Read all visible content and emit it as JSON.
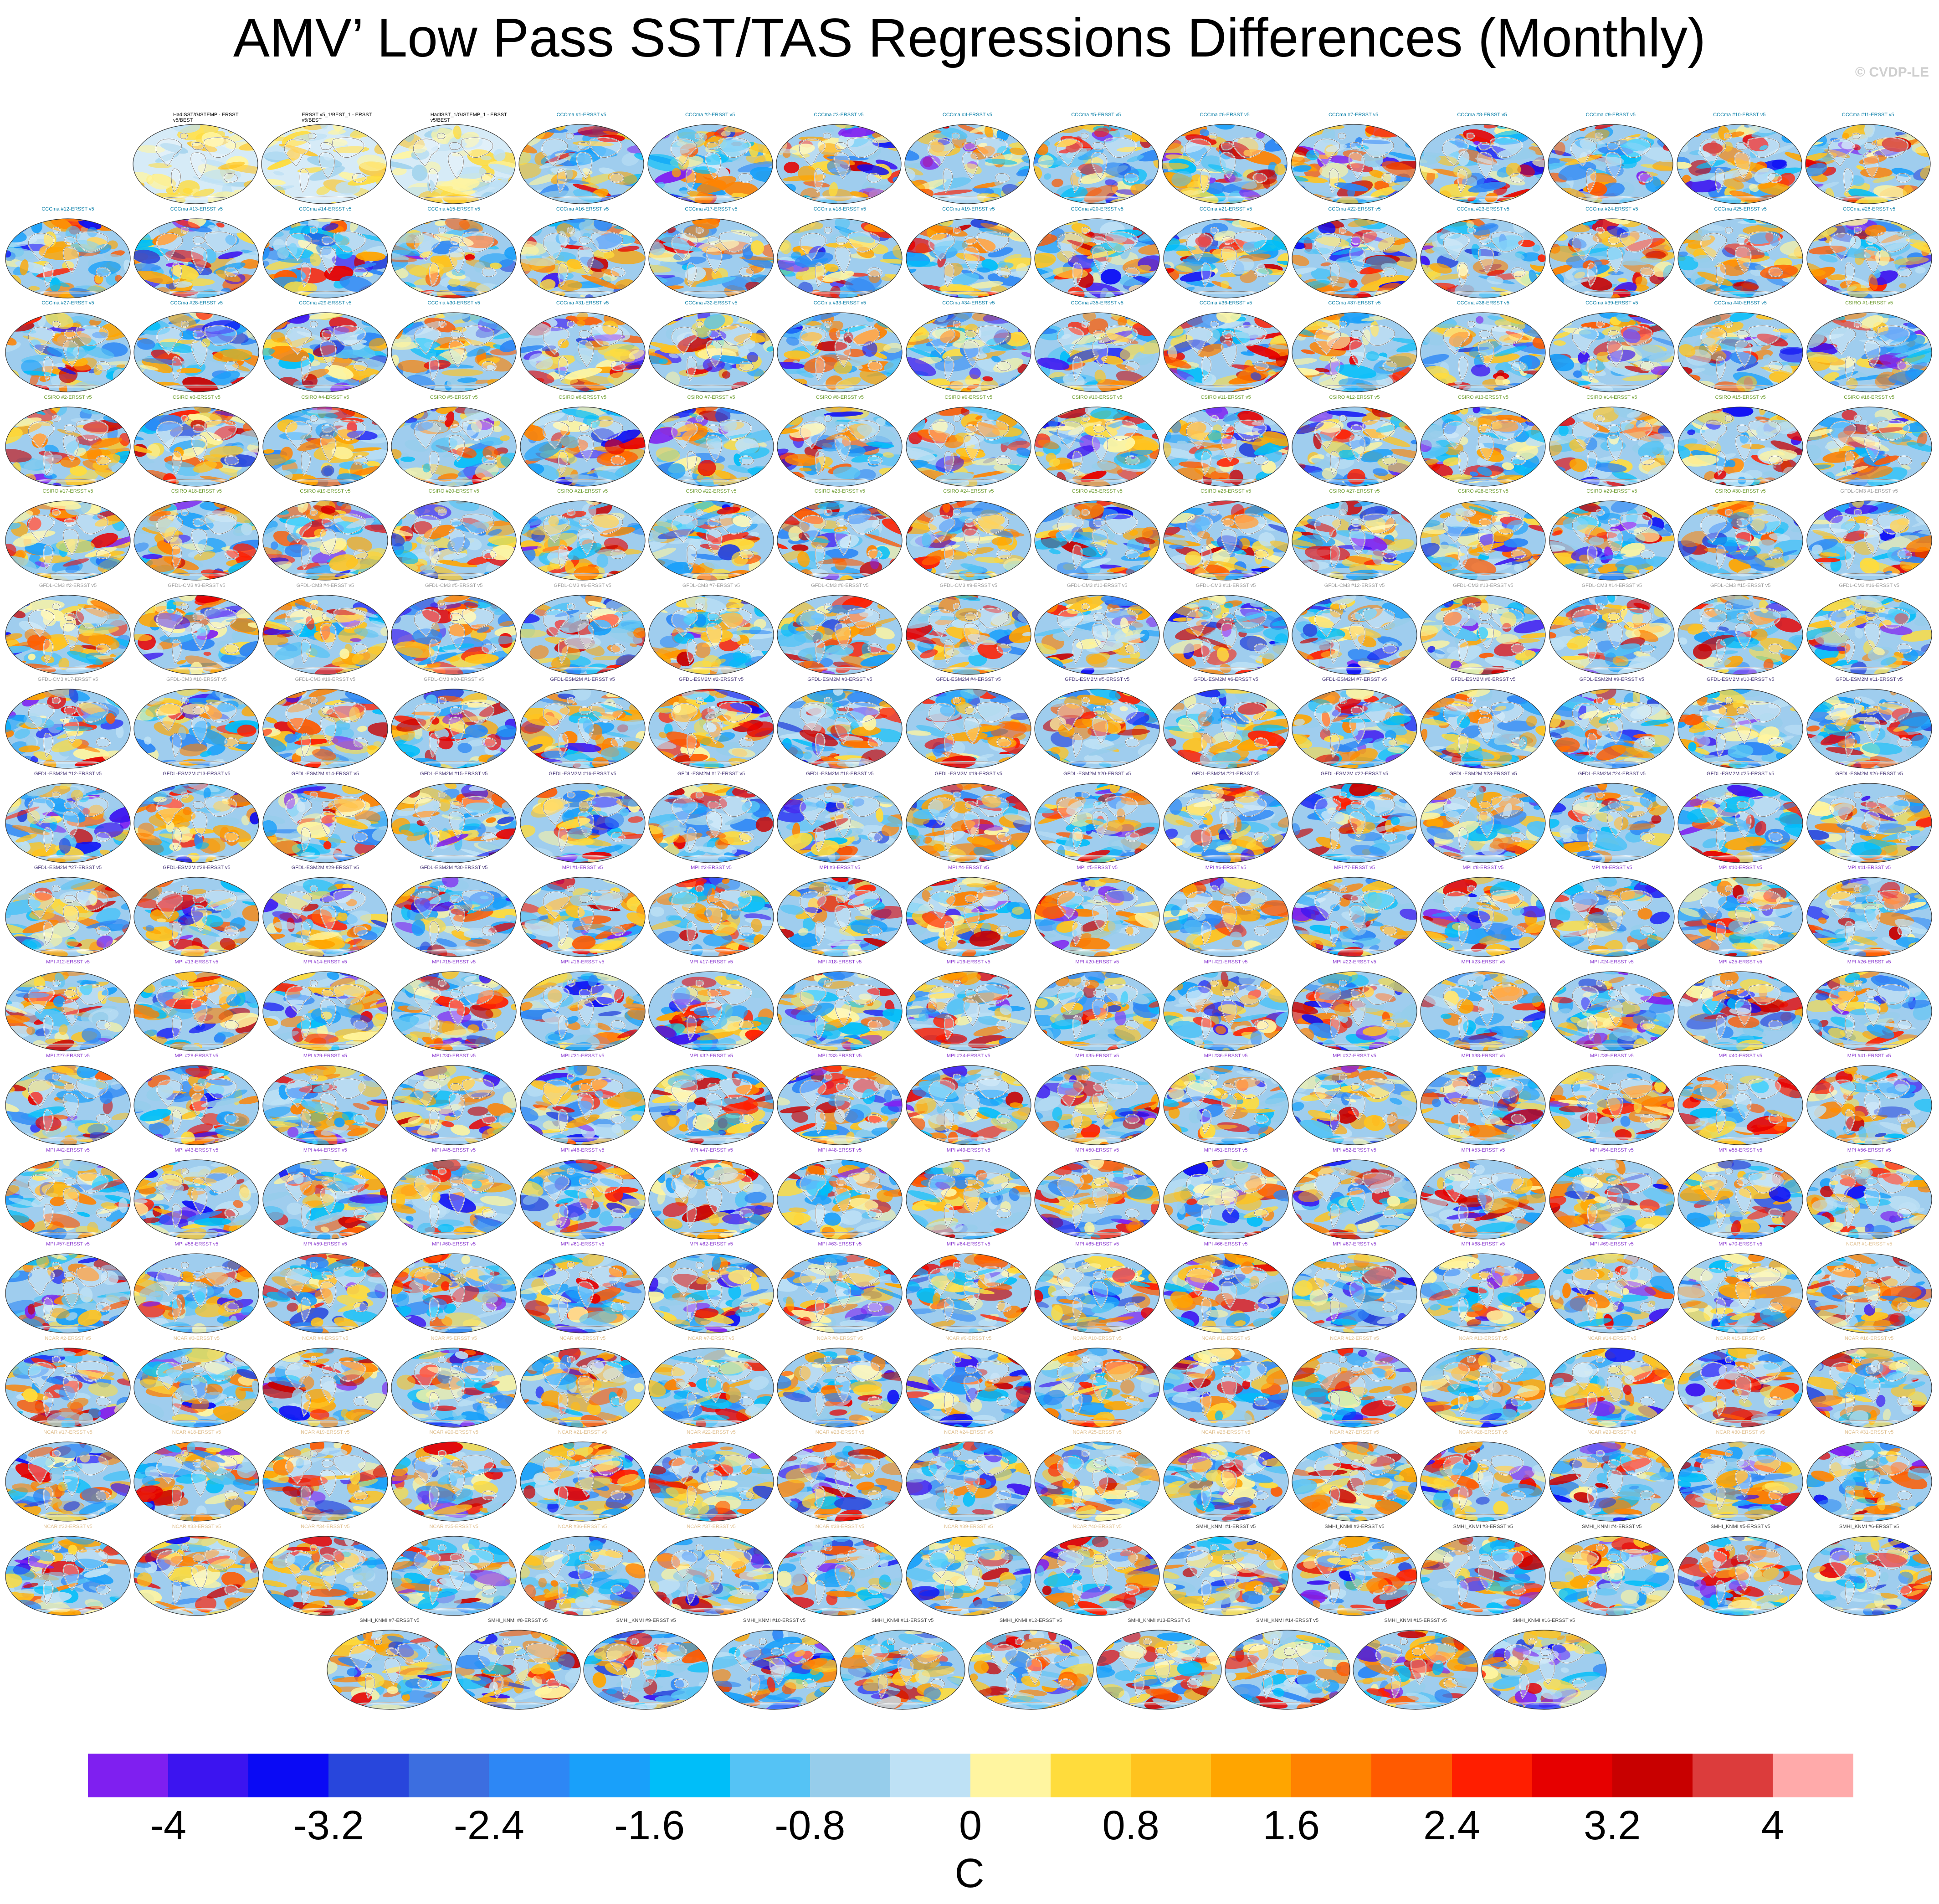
{
  "title": "AMV’ Low Pass SST/TAS Regressions Differences (Monthly)",
  "copyright": "© CVDP-LE",
  "units": "C",
  "chart_data": {
    "type": "heatmap",
    "description_kind": "grid of global map panels showing regression differences",
    "title": "AMV’ Low Pass SST/TAS Regressions Differences (Monthly)",
    "colorbar": {
      "label": "C",
      "tick_labels": [
        "-4",
        "-3.2",
        "-2.4",
        "-1.6",
        "-0.8",
        "0",
        "0.8",
        "1.6",
        "2.4",
        "3.2",
        "4"
      ],
      "tick_values": [
        -4,
        -3.2,
        -2.4,
        -1.6,
        -0.8,
        0,
        0.8,
        1.6,
        2.4,
        3.2,
        4
      ],
      "colors": [
        "#7f1ff0",
        "#3c14f0",
        "#0a0af5",
        "#2846dc",
        "#3c6ee0",
        "#2d87f5",
        "#19a0fa",
        "#00bef9",
        "#55c3f5",
        "#96cdeb",
        "#bee1f5",
        "#fff5a0",
        "#ffdc3c",
        "#ffc31e",
        "#ffa500",
        "#ff8200",
        "#ff5a00",
        "#ff1e00",
        "#e60000",
        "#c80000",
        "#dc3c3c",
        "#ffaaaa"
      ]
    },
    "panels": [
      [
        "HadISST/GISTEMP - ERSST v5/BEST",
        "ERSST v5_1/BEST_1 - ERSST v5/BEST",
        "HadISST_1/GISTEMP_1 - ERSST v5/BEST",
        "CCCma #1-ERSST v5",
        "CCCma #2-ERSST v5",
        "CCCma #3-ERSST v5",
        "CCCma #4-ERSST v5",
        "CCCma #5-ERSST v5",
        "CCCma #6-ERSST v5",
        "CCCma #7-ERSST v5",
        "CCCma #8-ERSST v5",
        "CCCma #9-ERSST v5",
        "CCCma #10-ERSST v5",
        "CCCma #11-ERSST v5"
      ],
      [
        "CCCma #12-ERSST v5",
        "CCCma #13-ERSST v5",
        "CCCma #14-ERSST v5",
        "CCCma #15-ERSST v5",
        "CCCma #16-ERSST v5",
        "CCCma #17-ERSST v5",
        "CCCma #18-ERSST v5",
        "CCCma #19-ERSST v5",
        "CCCma #20-ERSST v5",
        "CCCma #21-ERSST v5",
        "CCCma #22-ERSST v5",
        "CCCma #23-ERSST v5",
        "CCCma #24-ERSST v5",
        "CCCma #25-ERSST v5",
        "CCCma #26-ERSST v5"
      ],
      [
        "CCCma #27-ERSST v5",
        "CCCma #28-ERSST v5",
        "CCCma #29-ERSST v5",
        "CCCma #30-ERSST v5",
        "CCCma #31-ERSST v5",
        "CCCma #32-ERSST v5",
        "CCCma #33-ERSST v5",
        "CCCma #34-ERSST v5",
        "CCCma #35-ERSST v5",
        "CCCma #36-ERSST v5",
        "CCCma #37-ERSST v5",
        "CCCma #38-ERSST v5",
        "CCCma #39-ERSST v5",
        "CCCma #40-ERSST v5",
        "CSIRO #1-ERSST v5"
      ],
      [
        "CSIRO #2-ERSST v5",
        "CSIRO #3-ERSST v5",
        "CSIRO #4-ERSST v5",
        "CSIRO #5-ERSST v5",
        "CSIRO #6-ERSST v5",
        "CSIRO #7-ERSST v5",
        "CSIRO #8-ERSST v5",
        "CSIRO #9-ERSST v5",
        "CSIRO #10-ERSST v5",
        "CSIRO #11-ERSST v5",
        "CSIRO #12-ERSST v5",
        "CSIRO #13-ERSST v5",
        "CSIRO #14-ERSST v5",
        "CSIRO #15-ERSST v5",
        "CSIRO #16-ERSST v5"
      ],
      [
        "CSIRO #17-ERSST v5",
        "CSIRO #18-ERSST v5",
        "CSIRO #19-ERSST v5",
        "CSIRO #20-ERSST v5",
        "CSIRO #21-ERSST v5",
        "CSIRO #22-ERSST v5",
        "CSIRO #23-ERSST v5",
        "CSIRO #24-ERSST v5",
        "CSIRO #25-ERSST v5",
        "CSIRO #26-ERSST v5",
        "CSIRO #27-ERSST v5",
        "CSIRO #28-ERSST v5",
        "CSIRO #29-ERSST v5",
        "CSIRO #30-ERSST v5",
        "GFDL-CM3 #1-ERSST v5"
      ],
      [
        "GFDL-CM3 #2-ERSST v5",
        "GFDL-CM3 #3-ERSST v5",
        "GFDL-CM3 #4-ERSST v5",
        "GFDL-CM3 #5-ERSST v5",
        "GFDL-CM3 #6-ERSST v5",
        "GFDL-CM3 #7-ERSST v5",
        "GFDL-CM3 #8-ERSST v5",
        "GFDL-CM3 #9-ERSST v5",
        "GFDL-CM3 #10-ERSST v5",
        "GFDL-CM3 #11-ERSST v5",
        "GFDL-CM3 #12-ERSST v5",
        "GFDL-CM3 #13-ERSST v5",
        "GFDL-CM3 #14-ERSST v5",
        "GFDL-CM3 #15-ERSST v5",
        "GFDL-CM3 #16-ERSST v5"
      ],
      [
        "GFDL-CM3 #17-ERSST v5",
        "GFDL-CM3 #18-ERSST v5",
        "GFDL-CM3 #19-ERSST v5",
        "GFDL-CM3 #20-ERSST v5",
        "GFDL-ESM2M #1-ERSST v5",
        "GFDL-ESM2M #2-ERSST v5",
        "GFDL-ESM2M #3-ERSST v5",
        "GFDL-ESM2M #4-ERSST v5",
        "GFDL-ESM2M #5-ERSST v5",
        "GFDL-ESM2M #6-ERSST v5",
        "GFDL-ESM2M #7-ERSST v5",
        "GFDL-ESM2M #8-ERSST v5",
        "GFDL-ESM2M #9-ERSST v5",
        "GFDL-ESM2M #10-ERSST v5",
        "GFDL-ESM2M #11-ERSST v5"
      ],
      [
        "GFDL-ESM2M #12-ERSST v5",
        "GFDL-ESM2M #13-ERSST v5",
        "GFDL-ESM2M #14-ERSST v5",
        "GFDL-ESM2M #15-ERSST v5",
        "GFDL-ESM2M #16-ERSST v5",
        "GFDL-ESM2M #17-ERSST v5",
        "GFDL-ESM2M #18-ERSST v5",
        "GFDL-ESM2M #19-ERSST v5",
        "GFDL-ESM2M #20-ERSST v5",
        "GFDL-ESM2M #21-ERSST v5",
        "GFDL-ESM2M #22-ERSST v5",
        "GFDL-ESM2M #23-ERSST v5",
        "GFDL-ESM2M #24-ERSST v5",
        "GFDL-ESM2M #25-ERSST v5",
        "GFDL-ESM2M #26-ERSST v5"
      ],
      [
        "GFDL-ESM2M #27-ERSST v5",
        "GFDL-ESM2M #28-ERSST v5",
        "GFDL-ESM2M #29-ERSST v5",
        "GFDL-ESM2M #30-ERSST v5",
        "MPI #1-ERSST v5",
        "MPI #2-ERSST v5",
        "MPI #3-ERSST v5",
        "MPI #4-ERSST v5",
        "MPI #5-ERSST v5",
        "MPI #6-ERSST v5",
        "MPI #7-ERSST v5",
        "MPI #8-ERSST v5",
        "MPI #9-ERSST v5",
        "MPI #10-ERSST v5",
        "MPI #11-ERSST v5"
      ],
      [
        "MPI #12-ERSST v5",
        "MPI #13-ERSST v5",
        "MPI #14-ERSST v5",
        "MPI #15-ERSST v5",
        "MPI #16-ERSST v5",
        "MPI #17-ERSST v5",
        "MPI #18-ERSST v5",
        "MPI #19-ERSST v5",
        "MPI #20-ERSST v5",
        "MPI #21-ERSST v5",
        "MPI #22-ERSST v5",
        "MPI #23-ERSST v5",
        "MPI #24-ERSST v5",
        "MPI #25-ERSST v5",
        "MPI #26-ERSST v5"
      ],
      [
        "MPI #27-ERSST v5",
        "MPI #28-ERSST v5",
        "MPI #29-ERSST v5",
        "MPI #30-ERSST v5",
        "MPI #31-ERSST v5",
        "MPI #32-ERSST v5",
        "MPI #33-ERSST v5",
        "MPI #34-ERSST v5",
        "MPI #35-ERSST v5",
        "MPI #36-ERSST v5",
        "MPI #37-ERSST v5",
        "MPI #38-ERSST v5",
        "MPI #39-ERSST v5",
        "MPI #40-ERSST v5",
        "MPI #41-ERSST v5"
      ],
      [
        "MPI #42-ERSST v5",
        "MPI #43-ERSST v5",
        "MPI #44-ERSST v5",
        "MPI #45-ERSST v5",
        "MPI #46-ERSST v5",
        "MPI #47-ERSST v5",
        "MPI #48-ERSST v5",
        "MPI #49-ERSST v5",
        "MPI #50-ERSST v5",
        "MPI #51-ERSST v5",
        "MPI #52-ERSST v5",
        "MPI #53-ERSST v5",
        "MPI #54-ERSST v5",
        "MPI #55-ERSST v5",
        "MPI #56-ERSST v5"
      ],
      [
        "MPI #57-ERSST v5",
        "MPI #58-ERSST v5",
        "MPI #59-ERSST v5",
        "MPI #60-ERSST v5",
        "MPI #61-ERSST v5",
        "MPI #62-ERSST v5",
        "MPI #63-ERSST v5",
        "MPI #64-ERSST v5",
        "MPI #65-ERSST v5",
        "MPI #66-ERSST v5",
        "MPI #67-ERSST v5",
        "MPI #68-ERSST v5",
        "MPI #69-ERSST v5",
        "MPI #70-ERSST v5",
        "NCAR #1-ERSST v5"
      ],
      [
        "NCAR #2-ERSST v5",
        "NCAR #3-ERSST v5",
        "NCAR #4-ERSST v5",
        "NCAR #5-ERSST v5",
        "NCAR #6-ERSST v5",
        "NCAR #7-ERSST v5",
        "NCAR #8-ERSST v5",
        "NCAR #9-ERSST v5",
        "NCAR #10-ERSST v5",
        "NCAR #11-ERSST v5",
        "NCAR #12-ERSST v5",
        "NCAR #13-ERSST v5",
        "NCAR #14-ERSST v5",
        "NCAR #15-ERSST v5",
        "NCAR #16-ERSST v5"
      ],
      [
        "NCAR #17-ERSST v5",
        "NCAR #18-ERSST v5",
        "NCAR #19-ERSST v5",
        "NCAR #20-ERSST v5",
        "NCAR #21-ERSST v5",
        "NCAR #22-ERSST v5",
        "NCAR #23-ERSST v5",
        "NCAR #24-ERSST v5",
        "NCAR #25-ERSST v5",
        "NCAR #26-ERSST v5",
        "NCAR #27-ERSST v5",
        "NCAR #28-ERSST v5",
        "NCAR #29-ERSST v5",
        "NCAR #30-ERSST v5",
        "NCAR #31-ERSST v5"
      ],
      [
        "NCAR #32-ERSST v5",
        "NCAR #33-ERSST v5",
        "NCAR #34-ERSST v5",
        "NCAR #35-ERSST v5",
        "NCAR #36-ERSST v5",
        "NCAR #37-ERSST v5",
        "NCAR #38-ERSST v5",
        "NCAR #39-ERSST v5",
        "NCAR #40-ERSST v5",
        "SMHI_KNMI #1-ERSST v5",
        "SMHI_KNMI #2-ERSST v5",
        "SMHI_KNMI #3-ERSST v5",
        "SMHI_KNMI #4-ERSST v5",
        "SMHI_KNMI #5-ERSST v5",
        "SMHI_KNMI #6-ERSST v5"
      ],
      [
        "SMHI_KNMI #7-ERSST v5",
        "SMHI_KNMI #8-ERSST v5",
        "SMHI_KNMI #9-ERSST v5",
        "SMHI_KNMI #10-ERSST v5",
        "SMHI_KNMI #11-ERSST v5",
        "SMHI_KNMI #12-ERSST v5",
        "SMHI_KNMI #13-ERSST v5",
        "SMHI_KNMI #14-ERSST v5",
        "SMHI_KNMI #15-ERSST v5",
        "SMHI_KNMI #16-ERSST v5"
      ]
    ]
  }
}
